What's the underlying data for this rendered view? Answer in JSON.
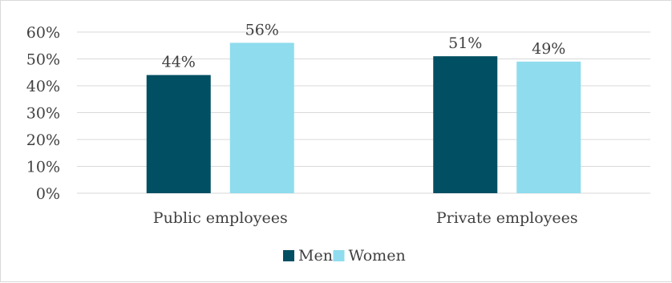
{
  "chart_data": {
    "type": "bar",
    "categories": [
      "Public employees",
      "Private employees"
    ],
    "series": [
      {
        "name": "Men",
        "values": [
          44,
          51
        ],
        "labels": [
          "44%",
          "51%"
        ],
        "color": "#004f62"
      },
      {
        "name": "Women",
        "values": [
          56,
          49
        ],
        "labels": [
          "56%",
          "49%"
        ],
        "color": "#8fdcee"
      }
    ],
    "yticks": [
      "0%",
      "10%",
      "20%",
      "30%",
      "40%",
      "50%",
      "60%"
    ],
    "ylim": [
      0,
      60
    ],
    "title": "",
    "xlabel": "",
    "ylabel": "",
    "grid": true,
    "grid_color": "#d9d9d9",
    "legend_position": "bottom"
  }
}
